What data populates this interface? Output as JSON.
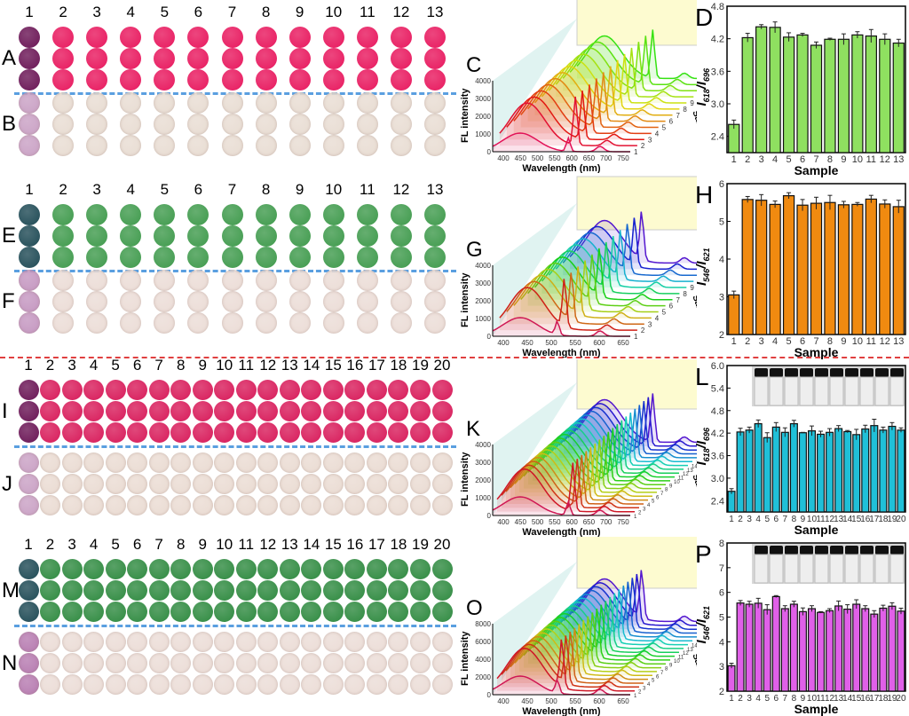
{
  "panel_labels": {
    "A": "A",
    "B": "B",
    "C": "C",
    "D": "D",
    "E": "E",
    "F": "F",
    "G": "G",
    "H": "H",
    "I": "I",
    "J": "J",
    "K": "K",
    "L": "L",
    "M": "M",
    "N": "N",
    "O": "O",
    "P": "P"
  },
  "photo_panels": [
    {
      "id": "A",
      "top": 12,
      "count": 13,
      "numbers": true,
      "color": "#e8185e",
      "first": "#6a1555",
      "kind": "pink"
    },
    {
      "id": "B",
      "top": 104,
      "count": 13,
      "numbers": false,
      "color": "#e8dcd2",
      "first": "#c9a0c4",
      "kind": "pale"
    },
    {
      "id": "E",
      "top": 212,
      "count": 13,
      "numbers": true,
      "color": "#3f9a4c",
      "first": "#1f4a55",
      "kind": "green"
    },
    {
      "id": "F",
      "top": 304,
      "count": 13,
      "numbers": false,
      "color": "#ebdcd6",
      "first": "#c496c0",
      "kind": "pale"
    },
    {
      "id": "I",
      "top": 410,
      "count": 20,
      "numbers": true,
      "color": "#d81b5a",
      "first": "#6a1555",
      "kind": "pink"
    },
    {
      "id": "J",
      "top": 510,
      "count": 20,
      "numbers": false,
      "color": "#eadbd2",
      "first": "#c9a0c4",
      "kind": "pale"
    },
    {
      "id": "M",
      "top": 612,
      "count": 20,
      "numbers": true,
      "color": "#2f8a40",
      "first": "#1f4a55",
      "kind": "green"
    },
    {
      "id": "N",
      "top": 712,
      "count": 20,
      "numbers": false,
      "color": "#ebdcd6",
      "first": "#b67ab0",
      "kind": "pale"
    }
  ],
  "column_numbers_13": [
    "1",
    "2",
    "3",
    "4",
    "5",
    "6",
    "7",
    "8",
    "9",
    "10",
    "11",
    "12",
    "13"
  ],
  "column_numbers_20": [
    "1",
    "2",
    "3",
    "4",
    "5",
    "6",
    "7",
    "8",
    "9",
    "10",
    "11",
    "12",
    "13",
    "14",
    "15",
    "16",
    "17",
    "18",
    "19",
    "20"
  ],
  "colors": {
    "divider_blue": "#5a9fe0",
    "divider_red": "#e04040",
    "bar_D": "#8fe060",
    "bar_H": "#f08a10",
    "bar_L": "#20c0d8",
    "bar_P": "#e060e8"
  },
  "chart_data": [
    {
      "panel": "D",
      "type": "bar",
      "xlabel": "Sample",
      "ylabel": "I618/I696",
      "ylabel_main": "I",
      "sub1": "618",
      "sub2": "696",
      "ylim": [
        2.1,
        4.8
      ],
      "yticks": [
        2.4,
        3.0,
        3.6,
        4.2,
        4.8
      ],
      "ytick_labels": [
        "2.4",
        "3.0",
        "3.6",
        "4.2",
        "4.8"
      ],
      "categories": [
        "1",
        "2",
        "3",
        "4",
        "5",
        "6",
        "7",
        "8",
        "9",
        "10",
        "11",
        "12",
        "13"
      ],
      "values": [
        2.62,
        4.22,
        4.42,
        4.41,
        4.23,
        4.27,
        4.08,
        4.19,
        4.19,
        4.27,
        4.25,
        4.19,
        4.12
      ],
      "errors": [
        0.08,
        0.08,
        0.04,
        0.1,
        0.08,
        0.03,
        0.06,
        0.02,
        0.1,
        0.06,
        0.12,
        0.1,
        0.07
      ],
      "color": "#8fe060"
    },
    {
      "panel": "H",
      "type": "bar",
      "xlabel": "Sample",
      "ylabel": "I546/I621",
      "ylabel_main": "I",
      "sub1": "546",
      "sub2": "621",
      "ylim": [
        2,
        6
      ],
      "yticks": [
        2,
        3,
        4,
        5,
        6
      ],
      "ytick_labels": [
        "2",
        "3",
        "4",
        "5",
        "6"
      ],
      "categories": [
        "1",
        "2",
        "3",
        "4",
        "5",
        "6",
        "7",
        "8",
        "9",
        "10",
        "11",
        "12",
        "13"
      ],
      "values": [
        3.05,
        5.58,
        5.56,
        5.45,
        5.68,
        5.43,
        5.48,
        5.5,
        5.44,
        5.45,
        5.59,
        5.46,
        5.39
      ],
      "errors": [
        0.1,
        0.08,
        0.15,
        0.09,
        0.08,
        0.15,
        0.16,
        0.19,
        0.09,
        0.05,
        0.1,
        0.11,
        0.17
      ],
      "color": "#f08a10"
    },
    {
      "panel": "L",
      "type": "bar",
      "xlabel": "Sample",
      "ylabel": "I618/I696",
      "ylabel_main": "I",
      "sub1": "618",
      "sub2": "696",
      "ylim": [
        2.1,
        6.0
      ],
      "yticks": [
        2.4,
        3.0,
        3.6,
        4.2,
        4.8,
        5.4,
        6.0
      ],
      "ytick_labels": [
        "2.4",
        "3.0",
        "3.6",
        "4.2",
        "4.8",
        "5.4",
        "6.0"
      ],
      "categories": [
        "1",
        "2",
        "3",
        "4",
        "5",
        "6",
        "7",
        "8",
        "9",
        "10",
        "11",
        "12",
        "13",
        "14",
        "15",
        "16",
        "17",
        "18",
        "19",
        "20"
      ],
      "values": [
        2.65,
        4.23,
        4.28,
        4.45,
        4.08,
        4.36,
        4.22,
        4.45,
        4.21,
        4.26,
        4.17,
        4.22,
        4.32,
        4.24,
        4.16,
        4.31,
        4.4,
        4.28,
        4.38,
        4.28
      ],
      "errors": [
        0.07,
        0.1,
        0.08,
        0.1,
        0.13,
        0.12,
        0.12,
        0.09,
        0.01,
        0.13,
        0.08,
        0.1,
        0.08,
        0.03,
        0.14,
        0.1,
        0.17,
        0.08,
        0.1,
        0.06
      ],
      "color": "#20c0d8",
      "inset": "vials-photo"
    },
    {
      "panel": "P",
      "type": "bar",
      "xlabel": "Sample",
      "ylabel": "I546/I621",
      "ylabel_main": "I",
      "sub1": "546",
      "sub2": "621",
      "ylim": [
        2,
        8
      ],
      "yticks": [
        2,
        3,
        4,
        5,
        6,
        7,
        8
      ],
      "ytick_labels": [
        "2",
        "3",
        "4",
        "5",
        "6",
        "7",
        "8"
      ],
      "categories": [
        "1",
        "2",
        "3",
        "4",
        "5",
        "6",
        "7",
        "8",
        "9",
        "10",
        "11",
        "12",
        "13",
        "14",
        "15",
        "16",
        "17",
        "18",
        "19",
        "20"
      ],
      "values": [
        3.03,
        5.57,
        5.52,
        5.56,
        5.3,
        5.83,
        5.34,
        5.52,
        5.22,
        5.34,
        5.19,
        5.26,
        5.45,
        5.32,
        5.52,
        5.34,
        5.12,
        5.36,
        5.44,
        5.24
      ],
      "errors": [
        0.1,
        0.1,
        0.12,
        0.2,
        0.2,
        0.04,
        0.12,
        0.12,
        0.15,
        0.12,
        0.03,
        0.08,
        0.2,
        0.18,
        0.18,
        0.12,
        0.14,
        0.12,
        0.14,
        0.12
      ],
      "color": "#e060e8",
      "inset": "vials-photo"
    },
    {
      "panel": "C",
      "type": "line",
      "style": "waterfall",
      "xlabel": "Wavelength (nm)",
      "ylabel": "FL intensity",
      "zlabel": "Sample",
      "xticks": [
        "400",
        "450",
        "500",
        "550",
        "600",
        "650",
        "700",
        "750"
      ],
      "yticks": [
        "0",
        "1000",
        "2000",
        "3000",
        "4000"
      ],
      "samples": 13,
      "palette": "red-to-green"
    },
    {
      "panel": "G",
      "type": "line",
      "style": "waterfall",
      "xlabel": "Wavelength (nm)",
      "ylabel": "FL intensity",
      "zlabel": "Sample",
      "xticks": [
        "400",
        "450",
        "500",
        "550",
        "600",
        "650"
      ],
      "yticks": [
        "0",
        "1000",
        "2000",
        "3000",
        "4000"
      ],
      "samples": 13,
      "palette": "red-to-blue"
    },
    {
      "panel": "K",
      "type": "line",
      "style": "waterfall",
      "xlabel": "Wavelength (nm)",
      "ylabel": "FL intensity",
      "zlabel": "Sample",
      "xticks": [
        "400",
        "450",
        "500",
        "550",
        "600",
        "650",
        "700",
        "750"
      ],
      "yticks": [
        "0",
        "1000",
        "2000",
        "3000",
        "4000"
      ],
      "samples": 20,
      "palette": "red-to-blue"
    },
    {
      "panel": "O",
      "type": "line",
      "style": "waterfall",
      "xlabel": "Wavelength (nm)",
      "ylabel": "FL intensity",
      "zlabel": "Sample",
      "xticks": [
        "400",
        "450",
        "500",
        "550",
        "600",
        "650"
      ],
      "yticks": [
        "0",
        "2000",
        "4000",
        "6000",
        "8000"
      ],
      "samples": 20,
      "palette": "red-to-blue"
    }
  ]
}
